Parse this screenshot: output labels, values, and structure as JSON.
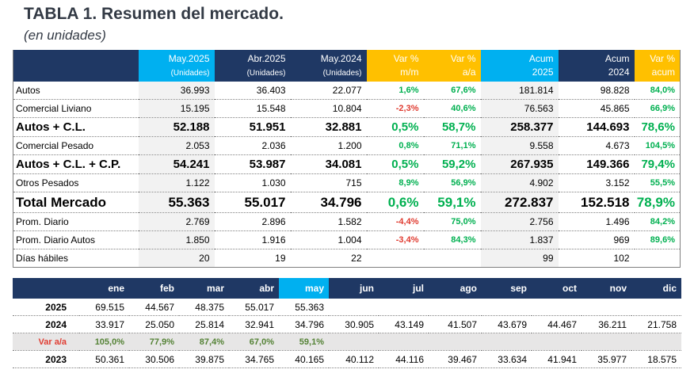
{
  "title": "TABLA 1. Resumen del mercado.",
  "subtitle": "(en unidades)",
  "summary": {
    "headers": [
      {
        "line1": "May.2025",
        "line2": "(Unidades)"
      },
      {
        "line1": "Abr.2025",
        "line2": "(Unidades)"
      },
      {
        "line1": "May.2024",
        "line2": "(Unidades)"
      },
      {
        "line1": "Var %",
        "line2": "m/m"
      },
      {
        "line1": "Var %",
        "line2": "a/a"
      },
      {
        "line1": "Acum",
        "line2": "2025"
      },
      {
        "line1": "Acum",
        "line2": "2024"
      },
      {
        "line1": "Var %",
        "line2": "acum"
      }
    ],
    "rows": [
      {
        "label": "Autos",
        "may25": "36.993",
        "abr25": "36.403",
        "may24": "22.077",
        "mm": "1,6%",
        "aa": "67,6%",
        "acum25": "181.814",
        "acum24": "98.828",
        "vacum": "84,0%"
      },
      {
        "label": "Comercial Liviano",
        "may25": "15.195",
        "abr25": "15.548",
        "may24": "10.804",
        "mm": "-2,3%",
        "aa": "40,6%",
        "acum25": "76.563",
        "acum24": "45.865",
        "vacum": "66,9%"
      },
      {
        "label": "Autos + C.L.",
        "may25": "52.188",
        "abr25": "51.951",
        "may24": "32.881",
        "mm": "0,5%",
        "aa": "58,7%",
        "acum25": "258.377",
        "acum24": "144.693",
        "vacum": "78,6%"
      },
      {
        "label": "Comercial Pesado",
        "may25": "2.053",
        "abr25": "2.036",
        "may24": "1.200",
        "mm": "0,8%",
        "aa": "71,1%",
        "acum25": "9.558",
        "acum24": "4.673",
        "vacum": "104,5%"
      },
      {
        "label": "Autos + C.L. + C.P.",
        "may25": "54.241",
        "abr25": "53.987",
        "may24": "34.081",
        "mm": "0,5%",
        "aa": "59,2%",
        "acum25": "267.935",
        "acum24": "149.366",
        "vacum": "79,4%"
      },
      {
        "label": "Otros Pesados",
        "may25": "1.122",
        "abr25": "1.030",
        "may24": "715",
        "mm": "8,9%",
        "aa": "56,9%",
        "acum25": "4.902",
        "acum24": "3.152",
        "vacum": "55,5%"
      },
      {
        "label": "Total Mercado",
        "may25": "55.363",
        "abr25": "55.017",
        "may24": "34.796",
        "mm": "0,6%",
        "aa": "59,1%",
        "acum25": "272.837",
        "acum24": "152.518",
        "vacum": "78,9%"
      },
      {
        "label": "Prom. Diario",
        "may25": "2.769",
        "abr25": "2.896",
        "may24": "1.582",
        "mm": "-4,4%",
        "aa": "75,0%",
        "acum25": "2.756",
        "acum24": "1.496",
        "vacum": "84,2%"
      },
      {
        "label": "Prom. Diario Autos",
        "may25": "1.850",
        "abr25": "1.916",
        "may24": "1.004",
        "mm": "-3,4%",
        "aa": "84,3%",
        "acum25": "1.837",
        "acum24": "969",
        "vacum": "89,6%"
      },
      {
        "label": "Días hábiles",
        "may25": "20",
        "abr25": "19",
        "may24": "22",
        "mm": "",
        "aa": "",
        "acum25": "99",
        "acum24": "102",
        "vacum": ""
      }
    ]
  },
  "monthly": {
    "months": [
      "ene",
      "feb",
      "mar",
      "abr",
      "may",
      "jun",
      "jul",
      "ago",
      "sep",
      "oct",
      "nov",
      "dic"
    ],
    "rows": [
      {
        "label": "2025",
        "values": [
          "69.515",
          "44.567",
          "48.375",
          "55.017",
          "55.363",
          "",
          "",
          "",
          "",
          "",
          "",
          ""
        ]
      },
      {
        "label": "2024",
        "values": [
          "33.917",
          "25.050",
          "25.814",
          "32.941",
          "34.796",
          "30.905",
          "43.149",
          "41.507",
          "43.679",
          "44.467",
          "36.211",
          "21.758"
        ]
      },
      {
        "label": "Var a/a",
        "values": [
          "105,0%",
          "77,9%",
          "87,4%",
          "67,0%",
          "59,1%",
          "",
          "",
          "",
          "",
          "",
          "",
          ""
        ]
      },
      {
        "label": "2023",
        "values": [
          "50.361",
          "30.506",
          "39.875",
          "34.765",
          "40.165",
          "40.112",
          "44.116",
          "39.467",
          "33.634",
          "41.941",
          "35.977",
          "18.575"
        ]
      }
    ]
  },
  "colors": {
    "header_navy": "#1f3864",
    "highlight_cyan": "#00b0f0",
    "highlight_yellow": "#ffc000",
    "positive": "#00b050",
    "negative": "#e03c31"
  }
}
